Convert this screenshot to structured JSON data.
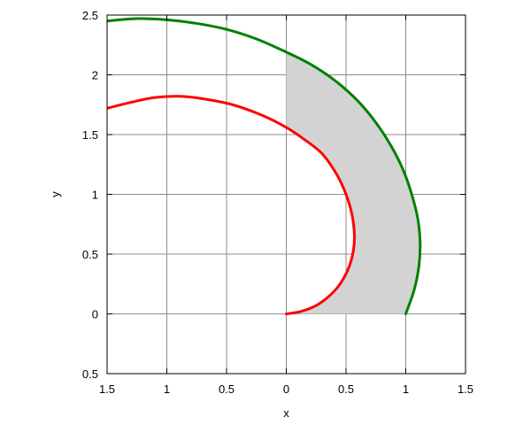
{
  "chart_data": {
    "type": "line",
    "xlabel": "x",
    "ylabel": "y",
    "xlim": [
      -1.5,
      1.5
    ],
    "ylim": [
      -0.5,
      2.5
    ],
    "x_ticks": [
      -1.5,
      -1,
      -0.5,
      0,
      0.5,
      1,
      1.5
    ],
    "x_tick_labels": [
      "1.5",
      "1",
      "0.5",
      "0",
      "0.5",
      "1",
      "1.5"
    ],
    "y_ticks": [
      -0.5,
      0,
      0.5,
      1,
      1.5,
      2,
      2.5
    ],
    "y_tick_labels": [
      "0.5",
      "0",
      "0.5",
      "1",
      "1.5",
      "2",
      "2.5"
    ],
    "grid": true,
    "legend": "none",
    "series": [
      {
        "color": "#008000",
        "points": [
          [
            1.0,
            0.0
          ],
          [
            1.07,
            0.2
          ],
          [
            1.11,
            0.4
          ],
          [
            1.12,
            0.6
          ],
          [
            1.1,
            0.8
          ],
          [
            1.05,
            1.0
          ],
          [
            0.98,
            1.2
          ],
          [
            0.88,
            1.4
          ],
          [
            0.75,
            1.6
          ],
          [
            0.6,
            1.78
          ],
          [
            0.41,
            1.95
          ],
          [
            0.2,
            2.09
          ],
          [
            0.0,
            2.19
          ],
          [
            -0.25,
            2.3
          ],
          [
            -0.5,
            2.38
          ],
          [
            -0.75,
            2.43
          ],
          [
            -1.0,
            2.46
          ],
          [
            -1.25,
            2.47
          ],
          [
            -1.5,
            2.45
          ]
        ]
      },
      {
        "color": "#ff0000",
        "points": [
          [
            0.0,
            0.0
          ],
          [
            0.12,
            0.02
          ],
          [
            0.25,
            0.07
          ],
          [
            0.36,
            0.15
          ],
          [
            0.45,
            0.25
          ],
          [
            0.52,
            0.38
          ],
          [
            0.56,
            0.52
          ],
          [
            0.57,
            0.66
          ],
          [
            0.55,
            0.83
          ],
          [
            0.5,
            1.0
          ],
          [
            0.42,
            1.17
          ],
          [
            0.3,
            1.34
          ],
          [
            0.15,
            1.46
          ],
          [
            0.0,
            1.56
          ],
          [
            -0.2,
            1.66
          ],
          [
            -0.45,
            1.75
          ],
          [
            -0.7,
            1.8
          ],
          [
            -0.9,
            1.82
          ],
          [
            -1.1,
            1.81
          ],
          [
            -1.3,
            1.77
          ],
          [
            -1.5,
            1.72
          ]
        ]
      }
    ],
    "shaded_region": {
      "color": "#d3d3d3",
      "x_range": [
        0,
        1
      ],
      "between": "red and green curves"
    }
  }
}
